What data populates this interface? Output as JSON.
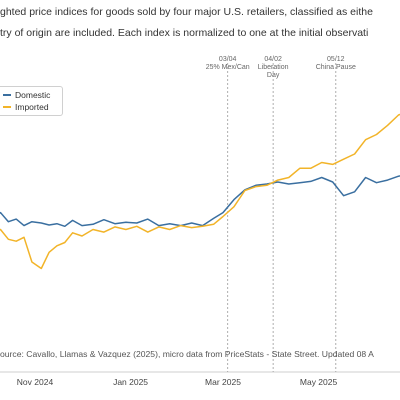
{
  "caption": {
    "line1": "ghted price indices for goods sold by four major U.S. retailers, classified as eithe",
    "line2": "try of origin are included. Each index is normalized to one at the initial observati"
  },
  "source": "ource: Cavallo, Llamas & Vazquez (2025), micro data from PriceStats - State Street. Updated 08 A",
  "chart_data": {
    "type": "line",
    "x_ticks": [
      "Nov 2024",
      "Jan 2025",
      "Mar 2025",
      "May 2025",
      "Ju"
    ],
    "x_tick_dates": [
      "2024-11-01",
      "2025-01-01",
      "2025-03-01",
      "2025-05-01",
      "2025-07-01"
    ],
    "events": [
      {
        "date": "2025-03-04",
        "label_lines": [
          "03/04",
          "25% Mex/Can"
        ]
      },
      {
        "date": "2025-04-02",
        "label_lines": [
          "04/02",
          "Liberation",
          "Day"
        ]
      },
      {
        "date": "2025-05-12",
        "label_lines": [
          "05/12",
          "China Pause"
        ]
      }
    ],
    "series": [
      {
        "name": "Domestic",
        "color": "#3a6fa0",
        "dates": [
          "2024-09-30",
          "2024-10-05",
          "2024-10-10",
          "2024-10-15",
          "2024-10-20",
          "2024-10-25",
          "2024-10-30",
          "2024-11-05",
          "2024-11-10",
          "2024-11-15",
          "2024-11-20",
          "2024-11-25",
          "2024-12-01",
          "2024-12-08",
          "2024-12-15",
          "2024-12-22",
          "2024-12-29",
          "2025-01-05",
          "2025-01-12",
          "2025-01-19",
          "2025-01-26",
          "2025-02-02",
          "2025-02-09",
          "2025-02-16",
          "2025-02-23",
          "2025-03-01",
          "2025-03-08",
          "2025-03-15",
          "2025-03-22",
          "2025-03-29",
          "2025-04-05",
          "2025-04-12",
          "2025-04-19",
          "2025-04-26",
          "2025-05-03",
          "2025-05-10",
          "2025-05-17",
          "2025-05-24",
          "2025-05-31",
          "2025-06-07",
          "2025-06-14",
          "2025-06-21",
          "2025-06-28",
          "2025-07-02"
        ],
        "values": [
          1.0022,
          1.001,
          1.0016,
          1.0002,
          1.0006,
          0.9996,
          1.0002,
          1.0,
          0.9997,
          0.9999,
          0.9995,
          1.0004,
          0.9996,
          0.9998,
          1.0005,
          0.9999,
          1.0001,
          1.0,
          1.0006,
          0.9996,
          0.9999,
          0.9996,
          1.0,
          0.9996,
          1.0007,
          1.0016,
          1.0036,
          1.0051,
          1.0058,
          1.006,
          1.0063,
          1.006,
          1.0062,
          1.0064,
          1.007,
          1.0063,
          1.0042,
          1.0048,
          1.007,
          1.0062,
          1.0066,
          1.0072,
          1.0075,
          1.0067
        ]
      },
      {
        "name": "Imported",
        "color": "#f2b429",
        "dates": [
          "2024-09-30",
          "2024-10-05",
          "2024-10-10",
          "2024-10-15",
          "2024-10-20",
          "2024-10-25",
          "2024-10-30",
          "2024-11-05",
          "2024-11-10",
          "2024-11-15",
          "2024-11-20",
          "2024-11-25",
          "2024-12-01",
          "2024-12-08",
          "2024-12-15",
          "2024-12-22",
          "2024-12-29",
          "2025-01-05",
          "2025-01-12",
          "2025-01-19",
          "2025-01-26",
          "2025-02-02",
          "2025-02-09",
          "2025-02-16",
          "2025-02-23",
          "2025-03-01",
          "2025-03-08",
          "2025-03-15",
          "2025-03-22",
          "2025-03-29",
          "2025-04-05",
          "2025-04-12",
          "2025-04-19",
          "2025-04-26",
          "2025-05-03",
          "2025-05-10",
          "2025-05-17",
          "2025-05-24",
          "2025-05-31",
          "2025-06-07",
          "2025-06-14",
          "2025-06-21",
          "2025-06-28",
          "2025-07-02"
        ],
        "values": [
          1.0005,
          0.9985,
          0.999,
          0.9975,
          0.9972,
          0.9978,
          0.994,
          0.993,
          0.9955,
          0.9965,
          0.997,
          0.9985,
          0.998,
          0.999,
          0.9986,
          0.9994,
          0.999,
          0.9995,
          0.9986,
          0.9994,
          0.999,
          0.9996,
          0.9993,
          0.9995,
          0.9998,
          1.001,
          1.0025,
          1.005,
          1.0056,
          1.0058,
          1.0066,
          1.007,
          1.0084,
          1.0084,
          1.0093,
          1.009,
          1.0098,
          1.0106,
          1.0128,
          1.0136,
          1.015,
          1.0166,
          1.0172,
          1.0165
        ]
      }
    ],
    "legend": {
      "position": "top-left"
    },
    "grid": false
  }
}
